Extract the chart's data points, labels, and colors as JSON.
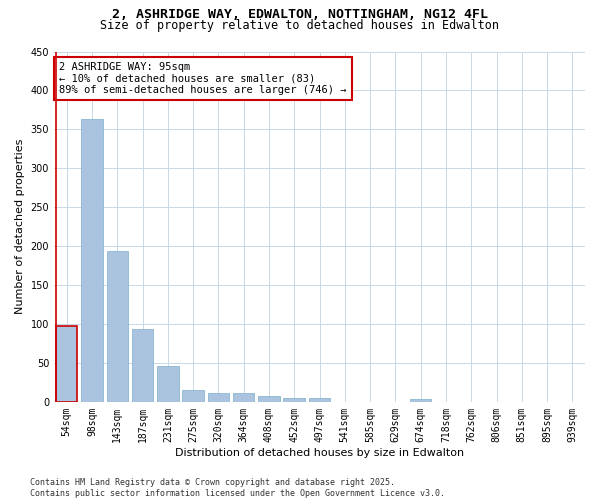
{
  "title_line1": "2, ASHRIDGE WAY, EDWALTON, NOTTINGHAM, NG12 4FL",
  "title_line2": "Size of property relative to detached houses in Edwalton",
  "xlabel": "Distribution of detached houses by size in Edwalton",
  "ylabel": "Number of detached properties",
  "categories": [
    "54sqm",
    "98sqm",
    "143sqm",
    "187sqm",
    "231sqm",
    "275sqm",
    "320sqm",
    "364sqm",
    "408sqm",
    "452sqm",
    "497sqm",
    "541sqm",
    "585sqm",
    "629sqm",
    "674sqm",
    "718sqm",
    "762sqm",
    "806sqm",
    "851sqm",
    "895sqm",
    "939sqm"
  ],
  "values": [
    97,
    363,
    194,
    93,
    46,
    15,
    11,
    11,
    8,
    5,
    5,
    0,
    0,
    0,
    4,
    0,
    0,
    0,
    0,
    0,
    0
  ],
  "bar_color": "#aac4e0",
  "bar_edge_color": "#7aaecc",
  "highlight_bar_edge_color": "#cc0000",
  "annotation_title": "2 ASHRIDGE WAY: 95sqm",
  "annotation_line2": "← 10% of detached houses are smaller (83)",
  "annotation_line3": "89% of semi-detached houses are larger (746) →",
  "annotation_box_color": "#ffffff",
  "annotation_box_edge_color": "#cc0000",
  "footer_line1": "Contains HM Land Registry data © Crown copyright and database right 2025.",
  "footer_line2": "Contains public sector information licensed under the Open Government Licence v3.0.",
  "ylim": [
    0,
    450
  ],
  "yticks": [
    0,
    50,
    100,
    150,
    200,
    250,
    300,
    350,
    400,
    450
  ],
  "background_color": "#ffffff",
  "grid_color": "#c8d8e8",
  "title_fontsize": 9.5,
  "subtitle_fontsize": 8.5,
  "axis_label_fontsize": 8,
  "tick_fontsize": 7,
  "annotation_fontsize": 7.5,
  "footer_fontsize": 6
}
